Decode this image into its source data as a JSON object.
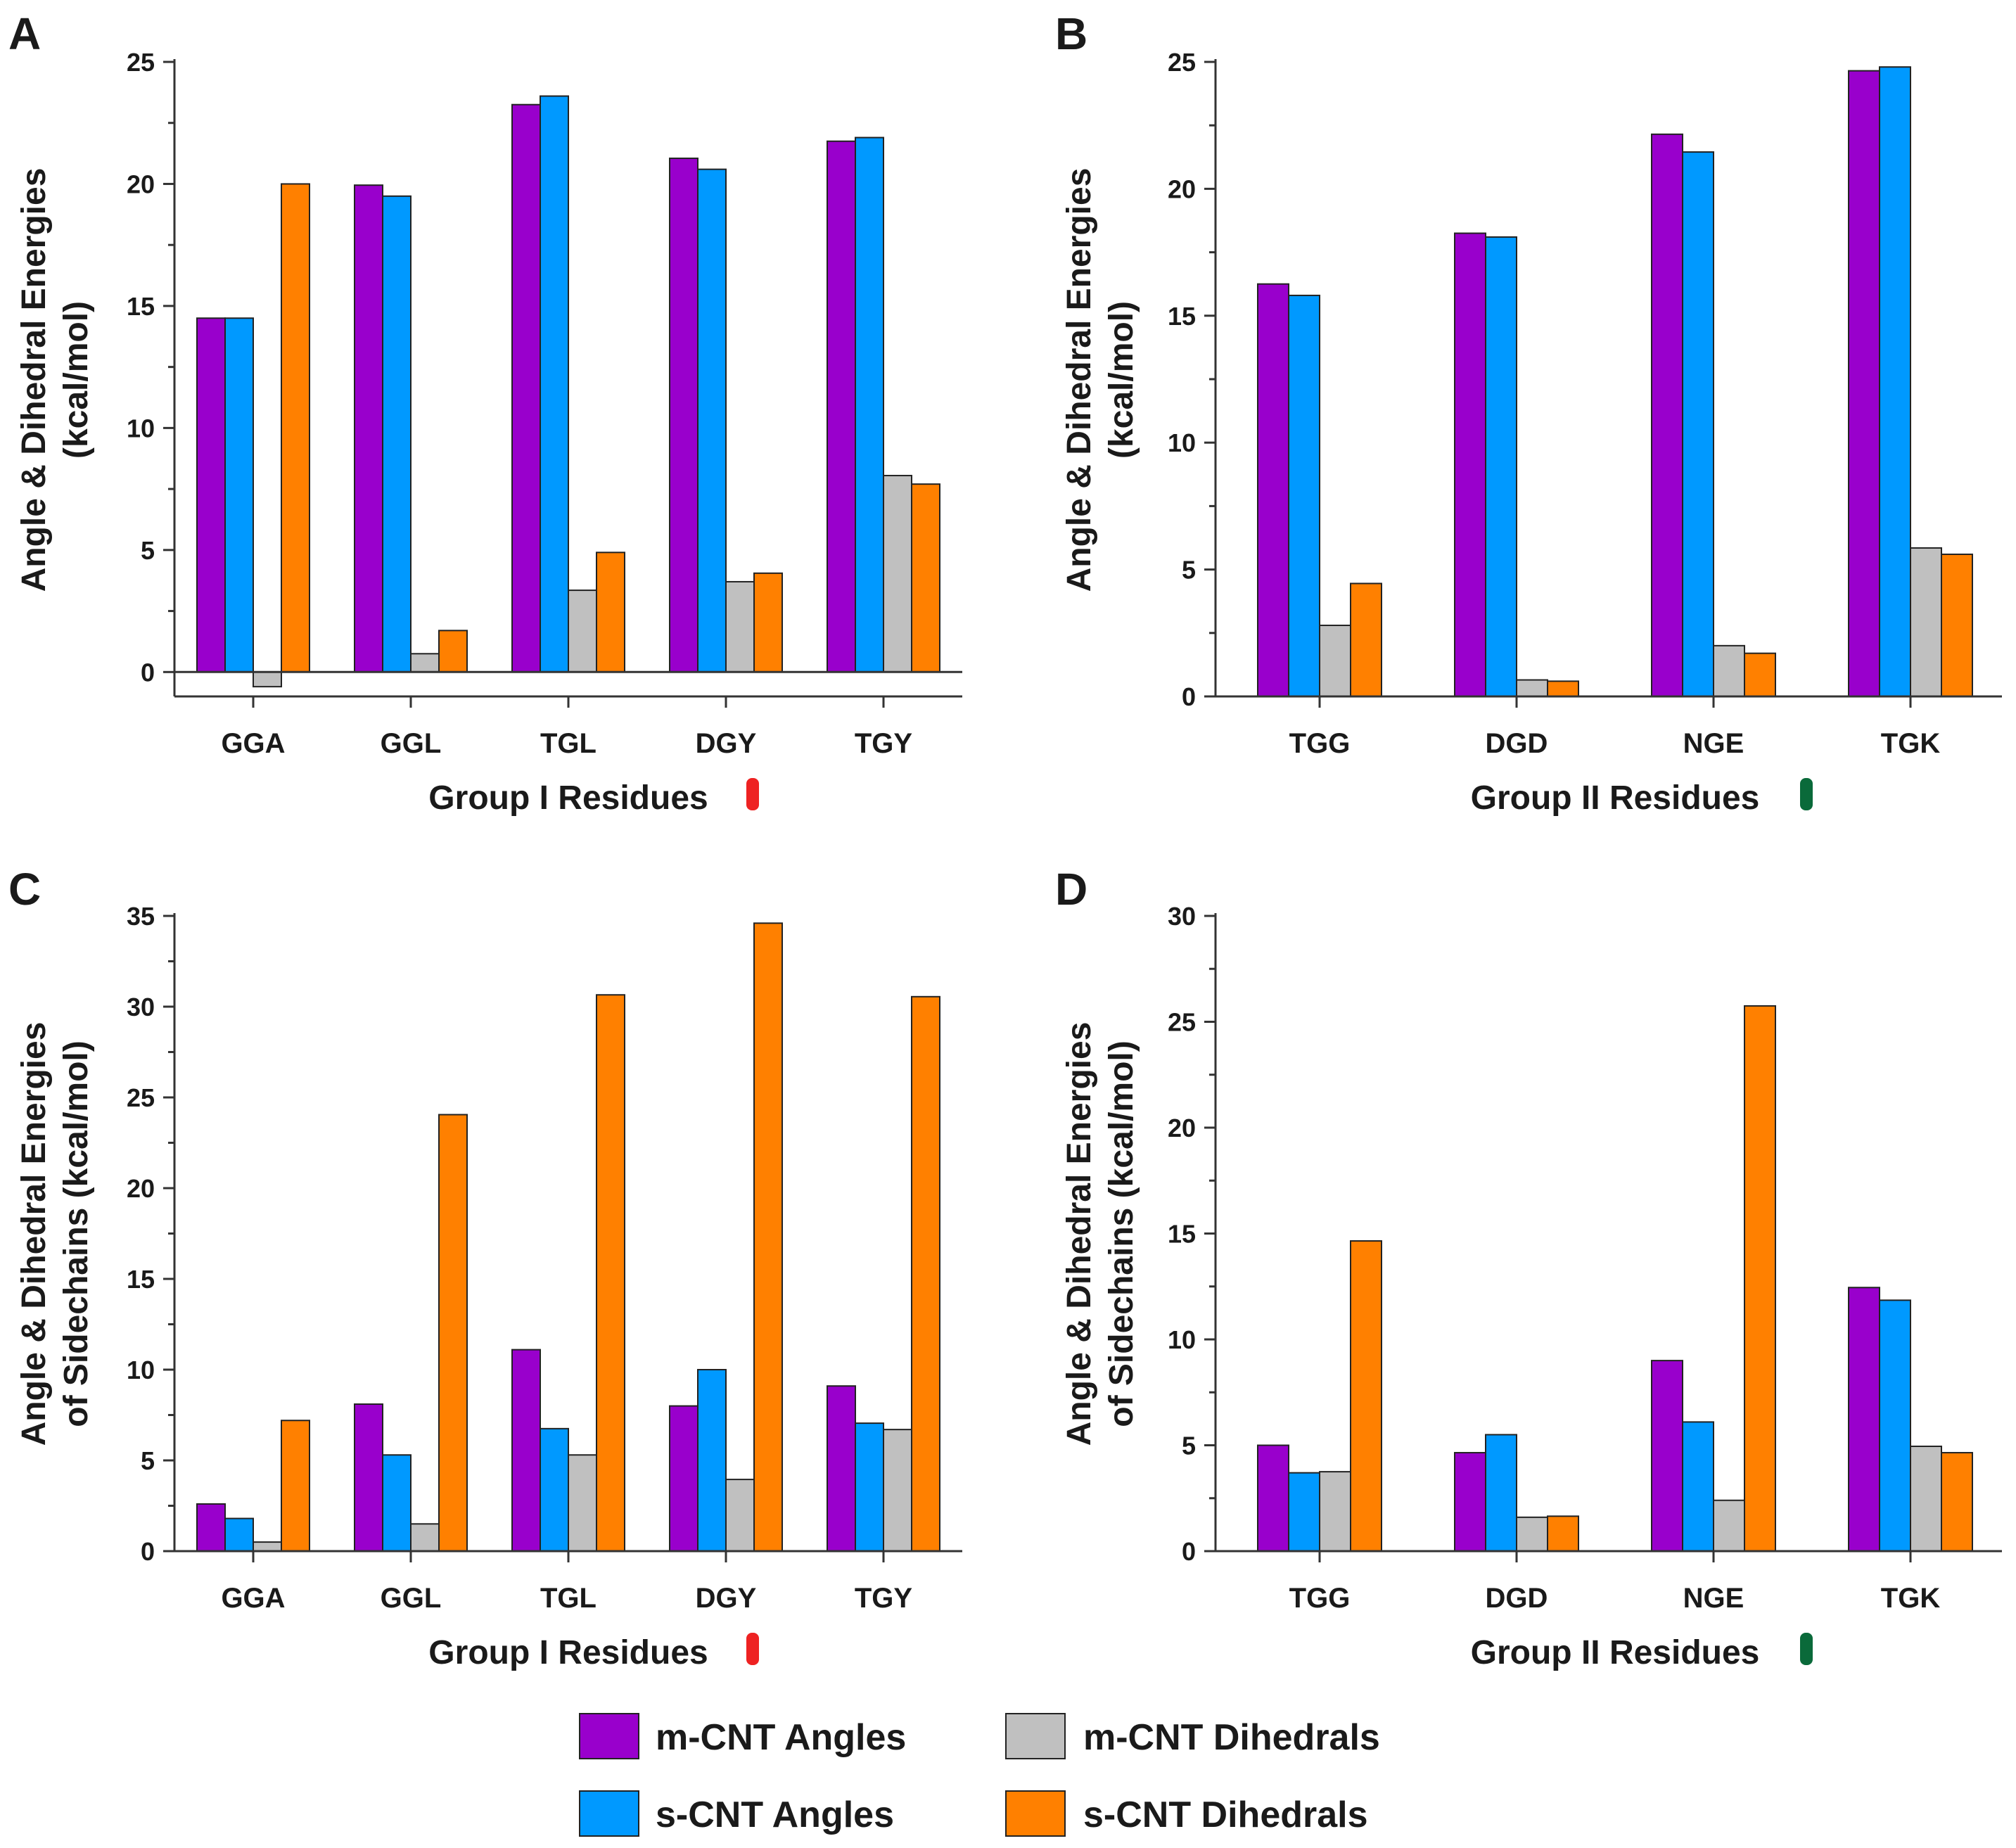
{
  "colors": {
    "m_cnt_angles": "#9900CC",
    "s_cnt_angles": "#0099FF",
    "m_cnt_dihedrals": "#C0C0C0",
    "s_cnt_dihedrals": "#FF8000",
    "group1_marker": "#EE2222",
    "group2_marker": "#0A6A3A"
  },
  "chart_data": [
    {
      "id": "A",
      "type": "bar",
      "panel_label": "A",
      "ylabel_lines": [
        "Angle & Dihedral Energies",
        "(kcal/mol)"
      ],
      "xlabel": "Group I Residues",
      "group_marker": "red",
      "ylim": [
        -1,
        25
      ],
      "yticks": [
        0,
        5,
        10,
        15,
        20,
        25
      ],
      "zero_line": true,
      "categories": [
        "GGA",
        "GGL",
        "TGL",
        "DGY",
        "TGY"
      ],
      "series": [
        {
          "name": "m-CNT Angles",
          "values": [
            14.5,
            19.95,
            23.25,
            21.05,
            21.75
          ]
        },
        {
          "name": "s-CNT Angles",
          "values": [
            14.5,
            19.5,
            23.6,
            20.6,
            21.9
          ]
        },
        {
          "name": "m-CNT Dihedrals",
          "values": [
            -0.6,
            0.75,
            3.35,
            3.7,
            8.05
          ]
        },
        {
          "name": "s-CNT Dihedrals",
          "values": [
            20.0,
            1.7,
            4.9,
            4.05,
            7.7
          ]
        }
      ]
    },
    {
      "id": "B",
      "type": "bar",
      "panel_label": "B",
      "ylabel_lines": [
        "Angle & Dihedral Energies",
        "(kcal/mol)"
      ],
      "xlabel": "Group II Residues",
      "group_marker": "green",
      "ylim": [
        0,
        25
      ],
      "yticks": [
        0,
        5,
        10,
        15,
        20,
        25
      ],
      "zero_line": false,
      "categories": [
        "TGG",
        "DGD",
        "NGE",
        "TGK"
      ],
      "series": [
        {
          "name": "m-CNT Angles",
          "values": [
            16.25,
            18.25,
            22.15,
            24.65
          ]
        },
        {
          "name": "s-CNT Angles",
          "values": [
            15.8,
            18.1,
            21.45,
            24.8
          ]
        },
        {
          "name": "m-CNT Dihedrals",
          "values": [
            2.8,
            0.65,
            2.0,
            5.85
          ]
        },
        {
          "name": "s-CNT Dihedrals",
          "values": [
            4.45,
            0.6,
            1.7,
            5.6
          ]
        }
      ]
    },
    {
      "id": "C",
      "type": "bar",
      "panel_label": "C",
      "ylabel_lines": [
        "Angle & Dihedral Energies",
        "of Sidechains (kcal/mol)"
      ],
      "xlabel": "Group I Residues",
      "group_marker": "red",
      "ylim": [
        0,
        35
      ],
      "yticks": [
        0,
        5,
        10,
        15,
        20,
        25,
        30,
        35
      ],
      "zero_line": false,
      "categories": [
        "GGA",
        "GGL",
        "TGL",
        "DGY",
        "TGY"
      ],
      "series": [
        {
          "name": "m-CNT Angles",
          "values": [
            2.6,
            8.1,
            11.1,
            8.0,
            9.1
          ]
        },
        {
          "name": "s-CNT Angles",
          "values": [
            1.8,
            5.3,
            6.75,
            10.0,
            7.05
          ]
        },
        {
          "name": "m-CNT Dihedrals",
          "values": [
            0.5,
            1.5,
            5.3,
            3.95,
            6.7
          ]
        },
        {
          "name": "s-CNT Dihedrals",
          "values": [
            7.2,
            24.05,
            30.65,
            34.6,
            30.55
          ]
        }
      ]
    },
    {
      "id": "D",
      "type": "bar",
      "panel_label": "D",
      "ylabel_lines": [
        "Angle & Dihedral Energies",
        "of Sidechains (kcal/mol)"
      ],
      "xlabel": "Group II Residues",
      "group_marker": "green",
      "ylim": [
        0,
        30
      ],
      "yticks": [
        0,
        5,
        10,
        15,
        20,
        25,
        30
      ],
      "zero_line": false,
      "categories": [
        "TGG",
        "DGD",
        "NGE",
        "TGK"
      ],
      "series": [
        {
          "name": "m-CNT Angles",
          "values": [
            5.0,
            4.65,
            9.0,
            12.45
          ]
        },
        {
          "name": "s-CNT Angles",
          "values": [
            3.7,
            5.5,
            6.1,
            11.85
          ]
        },
        {
          "name": "m-CNT Dihedrals",
          "values": [
            3.75,
            1.6,
            2.4,
            4.95
          ]
        },
        {
          "name": "s-CNT Dihedrals",
          "values": [
            14.65,
            1.65,
            25.75,
            4.65
          ]
        }
      ]
    }
  ],
  "legend": [
    {
      "label": "m-CNT Angles",
      "color_key": "m_cnt_angles"
    },
    {
      "label": "s-CNT Angles",
      "color_key": "s_cnt_angles"
    },
    {
      "label": "m-CNT Dihedrals",
      "color_key": "m_cnt_dihedrals"
    },
    {
      "label": "s-CNT Dihedrals",
      "color_key": "s_cnt_dihedrals"
    }
  ]
}
